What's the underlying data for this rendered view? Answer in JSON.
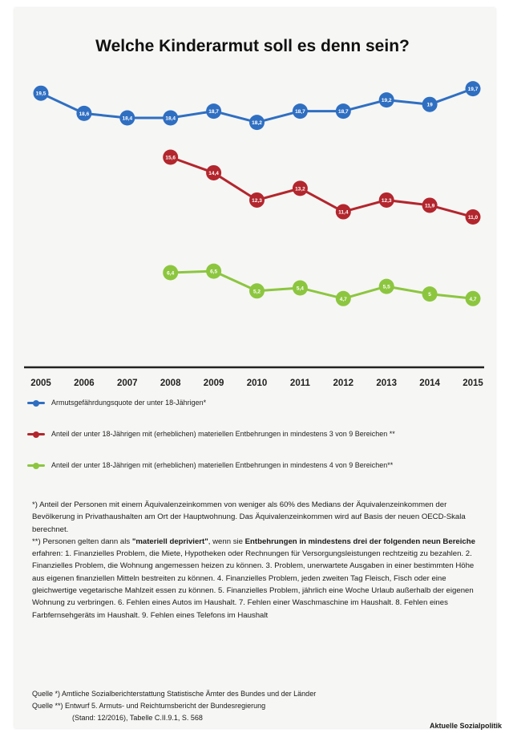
{
  "title": "Welche Kinderarmut soll es denn sein?",
  "chart_data": {
    "type": "line",
    "title": "Welche Kinderarmut soll es denn sein?",
    "x": [
      2005,
      2006,
      2007,
      2008,
      2009,
      2010,
      2011,
      2012,
      2013,
      2014,
      2015
    ],
    "series": [
      {
        "name": "Armutsgefährdungsquote der unter 18-Jährigen*",
        "color": "#2f6fc2",
        "values": [
          19.5,
          18.6,
          18.4,
          18.4,
          18.7,
          18.2,
          18.7,
          18.7,
          19.2,
          19.0,
          19.7
        ],
        "labels": [
          "19,5",
          "18,6",
          "18,4",
          "18,4",
          "18,7",
          "18,2",
          "18,7",
          "18,7",
          "19,2",
          "19",
          "19,7"
        ]
      },
      {
        "name": "Anteil der unter 18-Jährigen mit (erheblichen) materiellen Entbehrungen in mindestens 3 von 9 Bereichen **",
        "color": "#b3262d",
        "values": [
          null,
          null,
          null,
          15.6,
          14.4,
          12.3,
          13.2,
          11.4,
          12.3,
          11.9,
          11.0
        ],
        "labels": [
          null,
          null,
          null,
          "15,6",
          "14,4",
          "12,3",
          "13,2",
          "11,4",
          "12,3",
          "11,9",
          "11,0"
        ]
      },
      {
        "name": "Anteil der unter 18-Jährigen mit (erheblichen) materiellen Entbehrungen in mindestens 4 von 9 Bereichen**",
        "color": "#8cc63f",
        "values": [
          null,
          null,
          null,
          6.4,
          6.5,
          5.2,
          5.4,
          4.7,
          5.5,
          5.0,
          4.7
        ],
        "labels": [
          null,
          null,
          null,
          "6,4",
          "6,5",
          "5,2",
          "5,4",
          "4,7",
          "5,5",
          "5",
          "4,7"
        ]
      }
    ]
  },
  "notes": {
    "n1": "*) Anteil der Personen mit einem Äquivalenzeinkommen von weniger als 60% des Medians der Äquivalenzeinkommen der Bevölkerung in Privathaushalten am Ort der Hauptwohnung. Das Äquivalenzeinkommen wird auf Basis der neuen OECD-Skala berechnet.",
    "n2_a": "**) Personen gelten dann als ",
    "n2_b": "\"materiell depriviert\"",
    "n2_c": ", wenn sie ",
    "n2_d": "Entbehrungen in mindestens drei der folgenden neun Bereiche",
    "n2_e": " erfahren: 1. Finanzielles Problem, die Miete, Hypotheken oder Rechnungen für Versorgungsleistungen rechtzeitig zu bezahlen. 2. Finanzielles Problem, die Wohnung angemessen heizen zu können. 3. Problem, unerwartete Ausgaben in einer bestimmten Höhe aus eigenen finanziellen Mitteln bestreiten zu können. 4. Finanzielles Problem, jeden zweiten Tag Fleisch, Fisch oder eine gleichwertige vegetarische Mahlzeit essen zu können. 5. Finanzielles Problem, jährlich eine Woche Urlaub außerhalb der eigenen Wohnung zu verbringen. 6. Fehlen eines Autos im Haushalt. 7. Fehlen einer Waschmaschine im Haushalt. 8. Fehlen eines Farbfernsehgeräts im Haushalt. 9. Fehlen eines Telefons im Haushalt"
  },
  "sources": {
    "s1": "Quelle *) Amtliche Sozialberichterstattung Statistische Ämter des Bundes und der Länder",
    "s2": "Quelle **) Entwurf 5. Armuts- und Reichtumsbericht der Bundesregierung",
    "s3": "(Stand: 12/2016), Tabelle C.II.9.1, S. 568"
  },
  "publisher": "Aktuelle Sozialpolitik"
}
